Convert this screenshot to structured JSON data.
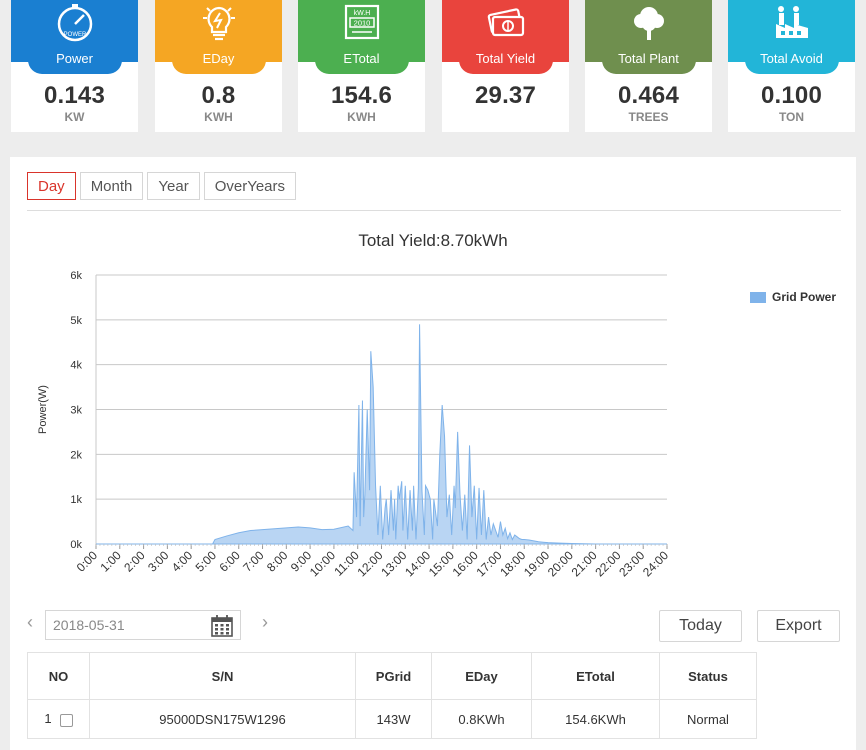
{
  "cards": [
    {
      "label": "Power",
      "value": "0.143",
      "unit": "KW",
      "color": "#1a7fd1",
      "icon": "speedometer-icon",
      "icon_text": "POWER"
    },
    {
      "label": "EDay",
      "value": "0.8",
      "unit": "KWH",
      "color": "#f5a623",
      "icon": "lightbulb-icon"
    },
    {
      "label": "ETotal",
      "value": "154.6",
      "unit": "KWH",
      "color": "#4caf50",
      "icon": "meter-icon",
      "icon_text": "kW.H",
      "icon_text2": "2010"
    },
    {
      "label": "Total Yield",
      "value": "29.37",
      "unit": "",
      "color": "#e9443d",
      "icon": "money-icon"
    },
    {
      "label": "Total Plant",
      "value": "0.464",
      "unit": "TREES",
      "color": "#6f8f4e",
      "icon": "tree-icon"
    },
    {
      "label": "Total Avoid",
      "value": "0.100",
      "unit": "TON",
      "color": "#22b5d8",
      "icon": "factory-icon"
    }
  ],
  "tabs": [
    "Day",
    "Month",
    "Year",
    "OverYears"
  ],
  "active_tab": "Day",
  "chart_data": {
    "type": "area",
    "title": "Total Yield:8.70kWh",
    "ylabel": "Power(W)",
    "xlabel": "",
    "ylim": [
      0,
      6000
    ],
    "yticks": [
      "0k",
      "1k",
      "2k",
      "3k",
      "4k",
      "5k",
      "6k"
    ],
    "xticks": [
      "0:00",
      "1:00",
      "2:00",
      "3:00",
      "4:00",
      "5:00",
      "6:00",
      "7:00",
      "8:00",
      "9:00",
      "10:00",
      "11:00",
      "12:00",
      "13:00",
      "14:00",
      "15:00",
      "16:00",
      "17:00",
      "18:00",
      "19:00",
      "20:00",
      "21:00",
      "22:00",
      "23:00",
      "24:00"
    ],
    "legend": "Grid Power",
    "legend_position": "top-right",
    "grid": true,
    "color": "#7fb3ea",
    "series": [
      {
        "name": "Grid Power",
        "x": [
          0,
          4.9,
          5.0,
          5.5,
          6,
          6.5,
          7,
          7.5,
          8,
          8.5,
          9,
          9.5,
          10,
          10.6,
          10.8,
          10.85,
          10.95,
          11.05,
          11.1,
          11.2,
          11.25,
          11.3,
          11.4,
          11.5,
          11.55,
          11.65,
          11.75,
          11.85,
          11.95,
          12.05,
          12.15,
          12.2,
          12.3,
          12.4,
          12.5,
          12.55,
          12.6,
          12.7,
          12.75,
          12.85,
          12.9,
          13.0,
          13.1,
          13.2,
          13.3,
          13.35,
          13.45,
          13.55,
          13.6,
          13.7,
          13.8,
          13.85,
          13.95,
          14.05,
          14.15,
          14.2,
          14.35,
          14.45,
          14.55,
          14.65,
          14.75,
          14.85,
          14.95,
          15.05,
          15.1,
          15.2,
          15.3,
          15.4,
          15.5,
          15.6,
          15.7,
          15.8,
          15.9,
          16.0,
          16.1,
          16.2,
          16.3,
          16.4,
          16.5,
          16.6,
          16.7,
          16.8,
          16.9,
          17.0,
          17.1,
          17.2,
          17.3,
          17.4,
          17.5,
          17.6,
          17.7,
          17.8,
          17.9,
          18.0,
          18.2,
          18.4,
          18.6,
          18.8,
          19.0,
          19.5,
          20.0,
          20.5,
          21.0,
          21.2,
          24
        ],
        "values": [
          0,
          0,
          100,
          180,
          250,
          300,
          320,
          340,
          360,
          380,
          360,
          320,
          330,
          400,
          300,
          1600,
          600,
          3100,
          400,
          3200,
          600,
          1100,
          3000,
          1200,
          4300,
          3500,
          1300,
          200,
          1300,
          100,
          800,
          1000,
          200,
          1200,
          300,
          1000,
          100,
          1300,
          1000,
          1400,
          300,
          1300,
          100,
          1200,
          300,
          1300,
          100,
          1250,
          4900,
          1200,
          200,
          1300,
          1200,
          1000,
          100,
          1000,
          400,
          2000,
          3100,
          2400,
          600,
          1100,
          200,
          1300,
          800,
          2500,
          1100,
          300,
          1100,
          100,
          2200,
          600,
          1300,
          100,
          1250,
          200,
          1200,
          100,
          600,
          200,
          450,
          300,
          150,
          500,
          200,
          350,
          120,
          250,
          100,
          200,
          160,
          120,
          100,
          100,
          90,
          70,
          50,
          40,
          30,
          20,
          10,
          5,
          0,
          0,
          0
        ]
      }
    ]
  },
  "date": "2018-05-31",
  "today_label": "Today",
  "export_label": "Export",
  "table": {
    "headers": [
      "NO",
      "S/N",
      "PGrid",
      "EDay",
      "ETotal",
      "Status"
    ],
    "rows": [
      {
        "no": "1",
        "sn": "95000DSN175W1296",
        "pgrid": "143W",
        "eday": "0.8KWh",
        "etotal": "154.6KWh",
        "status": "Normal"
      }
    ]
  }
}
